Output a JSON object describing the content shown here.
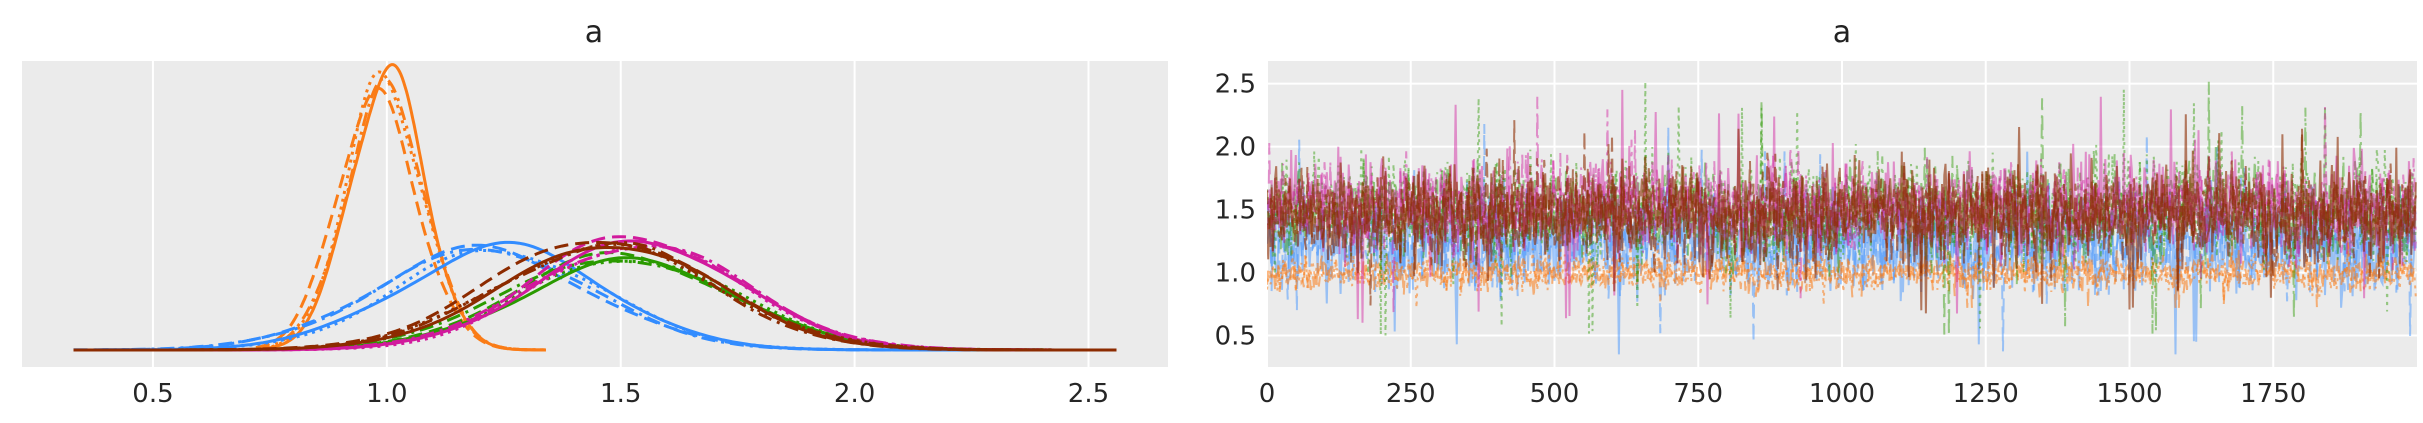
{
  "chart_data": [
    {
      "type": "density",
      "title": "a",
      "xlabel": "",
      "ylabel": "",
      "xlim": [
        0.22,
        2.67
      ],
      "xticks": [
        0.5,
        1.0,
        1.5,
        2.0,
        2.5
      ],
      "xtick_labels": [
        "0.5",
        "1.0",
        "1.5",
        "2.0",
        "2.5"
      ],
      "yticks_shown": false,
      "grid": true,
      "background": "#ebebeb",
      "series": [
        {
          "color": "#fa7c17",
          "x_range": [
            0.72,
            1.34
          ],
          "mode": 0.99,
          "chains": [
            {
              "linestyle": "solid",
              "mode": 0.995,
              "sd": 0.08,
              "peak": 1.0
            },
            {
              "linestyle": "dashed",
              "mode": 0.985,
              "sd": 0.086,
              "peak": 0.91
            },
            {
              "linestyle": "dashdot",
              "mode": 0.99,
              "sd": 0.084,
              "peak": 0.94
            },
            {
              "linestyle": "dotted",
              "mode": 1.0,
              "sd": 0.082,
              "peak": 0.97
            }
          ]
        },
        {
          "color": "#328cff",
          "x_range": [
            0.33,
            2.56
          ],
          "mode": 1.22,
          "chains": [
            {
              "linestyle": "solid",
              "mode": 1.23,
              "sd": 0.22,
              "peak": 0.37
            },
            {
              "linestyle": "dashed",
              "mode": 1.22,
              "sd": 0.23,
              "peak": 0.36
            },
            {
              "linestyle": "dashdot",
              "mode": 1.19,
              "sd": 0.23,
              "peak": 0.36
            },
            {
              "linestyle": "dotted",
              "mode": 1.26,
              "sd": 0.22,
              "peak": 0.36
            }
          ]
        },
        {
          "color": "#2a9a00",
          "x_range": [
            0.33,
            2.56
          ],
          "mode": 1.5,
          "chains": [
            {
              "linestyle": "solid",
              "mode": 1.5,
              "sd": 0.23,
              "peak": 0.32
            },
            {
              "linestyle": "dashed",
              "mode": 1.52,
              "sd": 0.23,
              "peak": 0.34
            },
            {
              "linestyle": "dashdot",
              "mode": 1.47,
              "sd": 0.24,
              "peak": 0.33
            },
            {
              "linestyle": "dotted",
              "mode": 1.54,
              "sd": 0.23,
              "peak": 0.33
            }
          ]
        },
        {
          "color": "#d11a9d",
          "x_range": [
            0.33,
            2.56
          ],
          "mode": 1.53,
          "chains": [
            {
              "linestyle": "solid",
              "mode": 1.52,
              "sd": 0.22,
              "peak": 0.39
            },
            {
              "linestyle": "dashed",
              "mode": 1.55,
              "sd": 0.22,
              "peak": 0.41
            },
            {
              "linestyle": "dashdot",
              "mode": 1.52,
              "sd": 0.23,
              "peak": 0.38
            },
            {
              "linestyle": "dotted",
              "mode": 1.56,
              "sd": 0.22,
              "peak": 0.38
            }
          ]
        },
        {
          "color": "#8c2b00",
          "x_range": [
            0.33,
            2.56
          ],
          "mode": 1.47,
          "chains": [
            {
              "linestyle": "solid",
              "mode": 1.46,
              "sd": 0.23,
              "peak": 0.38
            },
            {
              "linestyle": "dashed",
              "mode": 1.48,
              "sd": 0.24,
              "peak": 0.4
            },
            {
              "linestyle": "dashdot",
              "mode": 1.45,
              "sd": 0.23,
              "peak": 0.38
            },
            {
              "linestyle": "dotted",
              "mode": 1.49,
              "sd": 0.24,
              "peak": 0.37
            }
          ]
        }
      ]
    },
    {
      "type": "line",
      "title": "a",
      "xlabel": "",
      "ylabel": "",
      "xlim": [
        0,
        2000
      ],
      "ylim": [
        0.25,
        2.68
      ],
      "xticks": [
        0,
        250,
        500,
        750,
        1000,
        1250,
        1500,
        1750
      ],
      "xtick_labels": [
        "0",
        "250",
        "500",
        "750",
        "1000",
        "1250",
        "1500",
        "1750"
      ],
      "yticks": [
        0.5,
        1.0,
        1.5,
        2.0,
        2.5
      ],
      "ytick_labels": [
        "0.5",
        "1.0",
        "1.5",
        "2.0",
        "2.5"
      ],
      "grid": true,
      "background": "#ebebeb",
      "n_draws": 2000,
      "series": [
        {
          "color": "#328cff",
          "mean": 1.23,
          "sd": 0.22,
          "min": 0.35,
          "max": 2.2,
          "opacity": 0.45
        },
        {
          "color": "#fa7c17",
          "mean": 1.0,
          "sd": 0.085,
          "min": 0.72,
          "max": 1.34,
          "opacity": 0.55
        },
        {
          "color": "#2a9a00",
          "mean": 1.5,
          "sd": 0.23,
          "min": 0.5,
          "max": 2.57,
          "opacity": 0.45
        },
        {
          "color": "#d11a9d",
          "mean": 1.53,
          "sd": 0.22,
          "min": 0.55,
          "max": 2.5,
          "opacity": 0.45
        },
        {
          "color": "#8c2b00",
          "mean": 1.47,
          "sd": 0.23,
          "min": 0.6,
          "max": 2.3,
          "opacity": 0.6
        }
      ]
    }
  ]
}
